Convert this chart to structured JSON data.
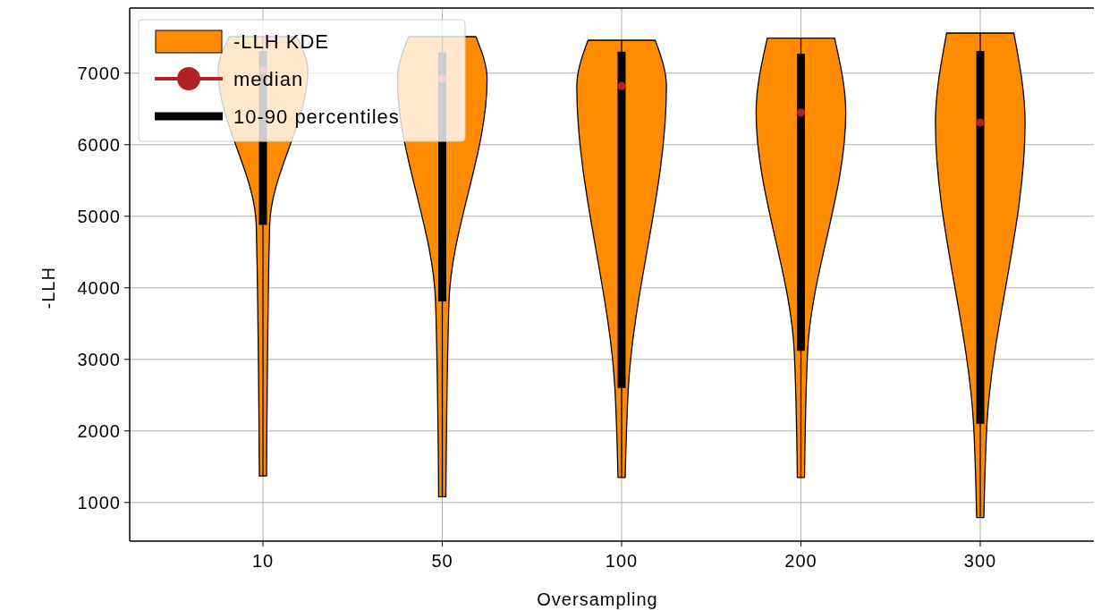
{
  "chart_data": {
    "type": "box",
    "xlabel": "Oversampling",
    "ylabel": "-LLH",
    "categories": [
      "10",
      "50",
      "100",
      "200",
      "300"
    ],
    "ylim": [
      460,
      7910
    ],
    "yticks": [
      1000,
      2000,
      3000,
      4000,
      5000,
      6000,
      7000
    ],
    "grid": true,
    "legend": "top left",
    "annotations": [
      "-LLH KDE",
      "median"
    ],
    "series": [
      {
        "name": "10-90 percentiles",
        "color": "#000000",
        "boxes": [
          {
            "low": 1370,
            "q1": 4880,
            "median": 7040,
            "q3": 7310,
            "high": 7510
          },
          {
            "low": 1080,
            "q1": 3810,
            "median": 6920,
            "q3": 7290,
            "high": 7510
          },
          {
            "low": 1350,
            "q1": 2600,
            "median": 6820,
            "q3": 7300,
            "high": 7460
          },
          {
            "low": 1350,
            "q1": 3120,
            "median": 6450,
            "q3": 7270,
            "high": 7490
          },
          {
            "low": 790,
            "q1": 2100,
            "median": 6310,
            "q3": 7310,
            "high": 7560
          }
        ]
      }
    ]
  }
}
